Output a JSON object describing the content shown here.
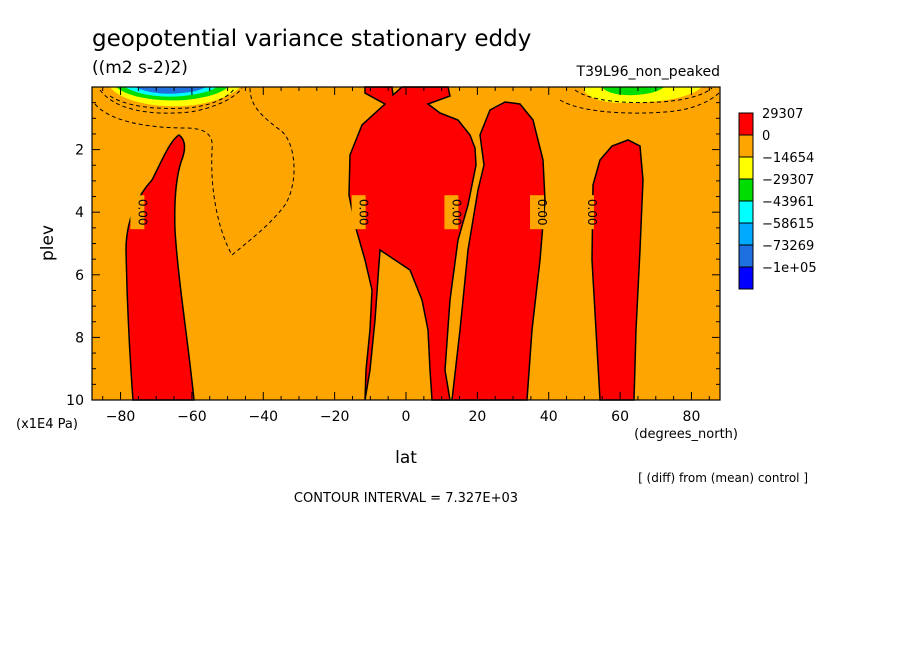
{
  "chart_data": {
    "type": "heatmap",
    "title": "geopotential variance stationary eddy",
    "subtitle": "((m2 s-2)2)",
    "run_label": "T39L96_non_peaked",
    "xlabel": "lat",
    "x_units": "(degrees_north)",
    "ylabel": "plev",
    "y_units": "(x1E4 Pa)",
    "xlim": [
      -88,
      88
    ],
    "ylim": [
      10,
      0
    ],
    "x_ticks": [
      -80,
      -60,
      -40,
      -20,
      0,
      20,
      40,
      60,
      80
    ],
    "y_ticks": [
      2,
      4,
      6,
      8,
      10
    ],
    "contour_interval_text": "CONTOUR INTERVAL = 7.327E+03",
    "diff_note": "[ (diff) from (mean) control ]",
    "contour_labels": [
      "0.00",
      "0.00",
      "0.00",
      "0.00",
      "0.00"
    ],
    "colorbar": [
      {
        "label": "29307",
        "color": "#ff0000"
      },
      {
        "label": "0",
        "color": "#ffa500"
      },
      {
        "label": "-14654",
        "color": "#ffff00"
      },
      {
        "label": "-29307",
        "color": "#00dd00"
      },
      {
        "label": "-43961",
        "color": "#00ffff"
      },
      {
        "label": "-58615",
        "color": "#00aaff"
      },
      {
        "label": "-73269",
        "color": "#1e6fe0"
      },
      {
        "label": "-1e+05",
        "color": "#0000ff"
      }
    ],
    "background_color": "#ffa500",
    "positive_color": "#ff0000"
  }
}
